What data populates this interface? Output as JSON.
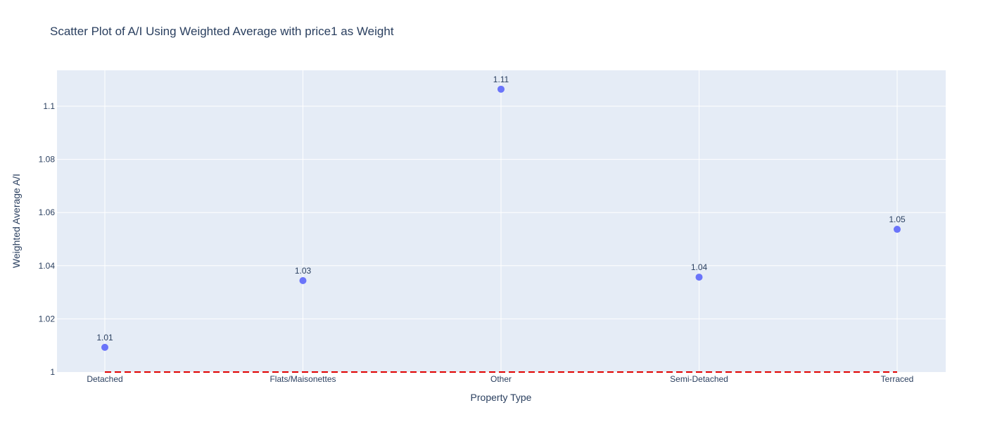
{
  "chart_data": {
    "type": "scatter",
    "title": "Scatter Plot of A/I Using Weighted Average with price1 as Weight",
    "xlabel": "Property Type",
    "ylabel": "Weighted Average A/I",
    "categories": [
      "Detached",
      "Flats/Maisonettes",
      "Other",
      "Semi-Detached",
      "Terraced"
    ],
    "values": [
      1.0093,
      1.0344,
      1.1064,
      1.0357,
      1.0537
    ],
    "data_labels": [
      "1.01",
      "1.03",
      "1.11",
      "1.04",
      "1.05"
    ],
    "ylim": [
      1.0,
      1.1135
    ],
    "yticks": [
      1,
      1.02,
      1.04,
      1.06,
      1.08,
      1.1
    ],
    "ytick_labels": [
      "1",
      "1.02",
      "1.04",
      "1.06",
      "1.08",
      "1.1"
    ],
    "reference_line": {
      "y": 1.0,
      "style": "dashed",
      "color": "#e00000"
    },
    "grid": true,
    "legend": "none",
    "colors": {
      "plot_background": "#e5ecf6",
      "marker": "#636efa",
      "gridline": "#ffffff",
      "text": "#2a3f5f"
    }
  }
}
